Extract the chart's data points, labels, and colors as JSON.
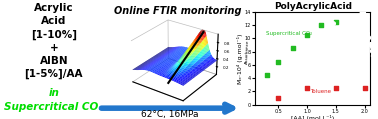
{
  "left_text_lines": [
    {
      "text": "Acrylic",
      "style": "bold",
      "color": "#000000",
      "size": 7.5
    },
    {
      "text": "Acid",
      "style": "bold",
      "color": "#000000",
      "size": 7.5
    },
    {
      "text": "[1-10%]",
      "style": "bold",
      "color": "#000000",
      "size": 7.5
    },
    {
      "text": "+",
      "style": "bold",
      "color": "#000000",
      "size": 7.5
    },
    {
      "text": "AIBN",
      "style": "bold",
      "color": "#000000",
      "size": 7.5
    },
    {
      "text": "[1-5%]/AA",
      "style": "bold",
      "color": "#000000",
      "size": 7.5
    },
    {
      "text": "in",
      "style": "bolditalic",
      "color": "#00dd00",
      "size": 7.5
    },
    {
      "text": "Supercritical CO₂",
      "style": "bolditalic",
      "color": "#00dd00",
      "size": 7.5
    }
  ],
  "center_title": "Online FTIR monitoring",
  "center_label": "62°C, 16MPa",
  "right_title": "PolyAcrylicAcid",
  "right_xlabel": "[AA] (mol.L⁻¹)",
  "right_ylabel": "Mₑ·10⁴ (g.mol⁻¹)",
  "green_x": [
    0.3,
    0.5,
    0.75,
    1.0,
    1.25,
    1.5
  ],
  "green_y": [
    4.5,
    6.5,
    8.5,
    10.5,
    12.0,
    12.5
  ],
  "red_x": [
    0.5,
    1.0,
    1.5,
    2.0
  ],
  "red_y": [
    1.0,
    2.5,
    2.5,
    2.5
  ],
  "green_label": "Supercritical CO₂",
  "red_label": "Toluene",
  "arrow_color": "#2277cc",
  "background": "#ffffff"
}
